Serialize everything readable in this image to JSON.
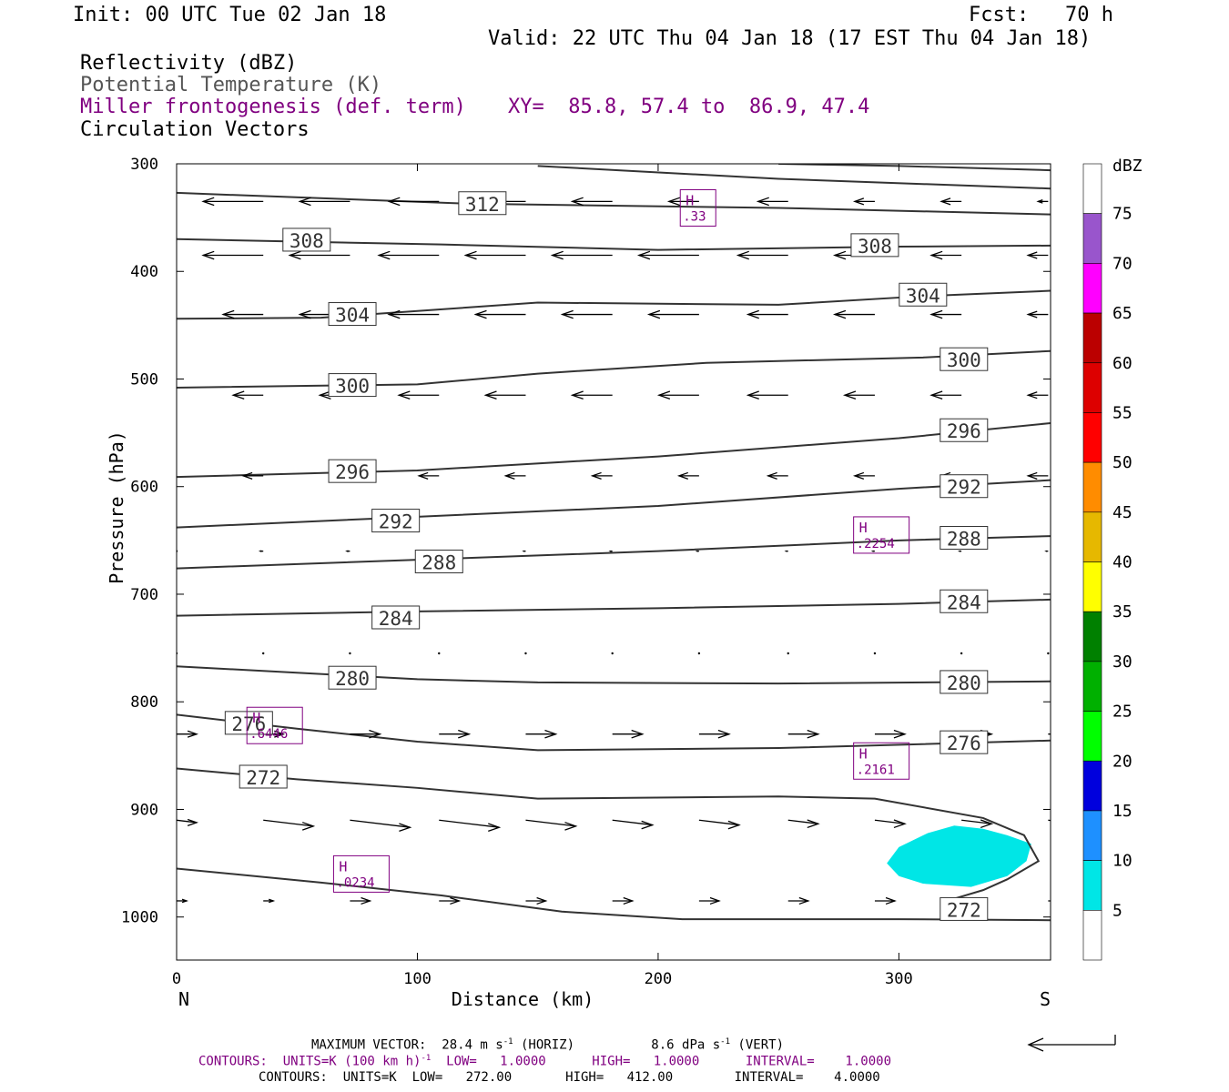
{
  "header": {
    "init": "Init: 00 UTC Tue 02 Jan 18",
    "fcst": "Fcst:   70 h",
    "valid": "Valid: 22 UTC Thu 04 Jan 18 (17 EST Thu 04 Jan 18)"
  },
  "fields": {
    "reflectivity": "Reflectivity (dBZ)",
    "theta": "Potential Temperature (K)",
    "miller": "Miller frontogenesis (def. term)",
    "xy": "XY=  85.8, 57.4 to  86.9, 47.4",
    "vectors": "Circulation Vectors"
  },
  "footer": {
    "maxvec": "MAXIMUM VECTOR:  28.4 m s",
    "maxvec_sup": "-1",
    "maxvec_horiz": " (HORIZ)",
    "maxvec_vert": "8.6 dPa s",
    "maxvec_vert_sup": "-1",
    "maxvec_vert_tail": " (VERT)",
    "contours1_a": "CONTOURS:  UNITS=K (100 km h)",
    "contours1_sup": "-1",
    "contours1_b": "  LOW=   1.0000      HIGH=   1.0000      INTERVAL=    1.0000",
    "contours2": "CONTOURS:  UNITS=K  LOW=   272.00       HIGH=   412.00        INTERVAL=    4.0000"
  },
  "colors": {
    "theta_line": "#333333",
    "miller": "#800080",
    "refl_5": "#00e6e6"
  },
  "chart_data": {
    "type": "cross-section",
    "xlabel": "Distance (km)",
    "ylabel": "Pressure (hPa)",
    "xlim": [
      0,
      363
    ],
    "ylim": [
      1040,
      300
    ],
    "x_ticks": [
      "0",
      "100",
      "200",
      "300"
    ],
    "x_tick_values": [
      0,
      100,
      200,
      300
    ],
    "y_ticks": [
      "300",
      "400",
      "500",
      "600",
      "700",
      "800",
      "900",
      "1000"
    ],
    "y_tick_values": [
      300,
      400,
      500,
      600,
      700,
      800,
      900,
      1000
    ],
    "left_end": "N",
    "right_end": "S",
    "theta_contours": [
      {
        "label": "312",
        "points": [
          [
            0,
            327
          ],
          [
            120,
            337
          ],
          [
            250,
            341
          ],
          [
            363,
            347
          ]
        ],
        "label_at": [
          [
            127,
            337
          ]
        ]
      },
      {
        "label": "308",
        "points": [
          [
            0,
            370
          ],
          [
            110,
            375
          ],
          [
            200,
            380
          ],
          [
            300,
            377
          ],
          [
            363,
            376
          ]
        ],
        "label_at": [
          [
            54,
            371
          ],
          [
            290,
            376
          ]
        ]
      },
      {
        "label": "304",
        "points": [
          [
            0,
            444
          ],
          [
            60,
            443
          ],
          [
            150,
            429
          ],
          [
            250,
            431
          ],
          [
            310,
            423
          ],
          [
            363,
            418
          ]
        ],
        "label_at": [
          [
            73,
            440
          ],
          [
            310,
            422
          ]
        ]
      },
      {
        "label": "300",
        "points": [
          [
            0,
            508
          ],
          [
            100,
            505
          ],
          [
            150,
            495
          ],
          [
            220,
            485
          ],
          [
            310,
            480
          ],
          [
            363,
            474
          ]
        ],
        "label_at": [
          [
            73,
            506
          ],
          [
            327,
            482
          ]
        ]
      },
      {
        "label": "296",
        "points": [
          [
            0,
            591
          ],
          [
            100,
            585
          ],
          [
            200,
            572
          ],
          [
            300,
            555
          ],
          [
            363,
            541
          ]
        ],
        "label_at": [
          [
            73,
            586
          ],
          [
            327,
            548
          ]
        ]
      },
      {
        "label": "292",
        "points": [
          [
            0,
            638
          ],
          [
            100,
            628
          ],
          [
            200,
            618
          ],
          [
            300,
            602
          ],
          [
            363,
            594
          ]
        ],
        "label_at": [
          [
            91,
            632
          ],
          [
            327,
            600
          ]
        ]
      },
      {
        "label": "288",
        "points": [
          [
            0,
            676
          ],
          [
            100,
            668
          ],
          [
            200,
            660
          ],
          [
            300,
            650
          ],
          [
            363,
            646
          ]
        ],
        "label_at": [
          [
            109,
            670
          ],
          [
            327,
            648
          ]
        ]
      },
      {
        "label": "284",
        "points": [
          [
            0,
            720
          ],
          [
            100,
            716
          ],
          [
            200,
            713
          ],
          [
            300,
            709
          ],
          [
            363,
            705
          ]
        ],
        "label_at": [
          [
            91,
            722
          ],
          [
            327,
            707
          ]
        ]
      },
      {
        "label": "280",
        "points": [
          [
            0,
            767
          ],
          [
            100,
            779
          ],
          [
            150,
            782
          ],
          [
            250,
            783
          ],
          [
            363,
            781
          ]
        ],
        "label_at": [
          [
            73,
            778
          ],
          [
            327,
            782
          ]
        ]
      },
      {
        "label": "276",
        "points": [
          [
            0,
            812
          ],
          [
            50,
            825
          ],
          [
            100,
            837
          ],
          [
            150,
            845
          ],
          [
            250,
            843
          ],
          [
            363,
            836
          ]
        ],
        "label_at": [
          [
            30,
            820
          ],
          [
            327,
            838
          ]
        ]
      },
      {
        "label": "272",
        "points": [
          [
            0,
            862
          ],
          [
            50,
            872
          ],
          [
            100,
            880
          ],
          [
            150,
            890
          ],
          [
            250,
            888
          ],
          [
            290,
            890
          ],
          [
            335,
            908
          ],
          [
            352,
            924
          ],
          [
            358,
            948
          ],
          [
            345,
            965
          ],
          [
            335,
            975
          ],
          [
            320,
            985
          ]
        ],
        "label_at": [
          [
            36,
            870
          ],
          [
            327,
            993
          ]
        ]
      },
      {
        "label": "",
        "points": [
          [
            0,
            955
          ],
          [
            60,
            968
          ],
          [
            110,
            980
          ],
          [
            160,
            995
          ],
          [
            210,
            1002
          ],
          [
            300,
            1002
          ],
          [
            363,
            1003
          ]
        ],
        "label_at": []
      },
      {
        "label": "",
        "points": [
          [
            250,
            300
          ],
          [
            300,
            302
          ],
          [
            363,
            306
          ]
        ],
        "label_at": []
      },
      {
        "label": "",
        "points": [
          [
            150,
            302
          ],
          [
            250,
            314
          ],
          [
            363,
            323
          ]
        ],
        "label_at": []
      }
    ],
    "miller_highs": [
      {
        "label": "H",
        "value": ".33",
        "x": 216,
        "y": 341
      },
      {
        "label": "H",
        "value": ".2254",
        "x": 288,
        "y": 645
      },
      {
        "label": "H",
        "value": ".6446",
        "x": 36,
        "y": 822
      },
      {
        "label": "H",
        "value": ".2161",
        "x": 288,
        "y": 855
      },
      {
        "label": "H",
        "value": ".0234",
        "x": 72,
        "y": 960
      }
    ],
    "reflectivity_area": {
      "level": "5",
      "points": [
        [
          295,
          950
        ],
        [
          300,
          935
        ],
        [
          312,
          922
        ],
        [
          323,
          915
        ],
        [
          335,
          918
        ],
        [
          345,
          924
        ],
        [
          355,
          932
        ],
        [
          353,
          948
        ],
        [
          345,
          962
        ],
        [
          330,
          972
        ],
        [
          310,
          969
        ],
        [
          300,
          962
        ]
      ]
    },
    "vectors": {
      "x": [
        0,
        36,
        72,
        109,
        145,
        181,
        217,
        254,
        290,
        326,
        362
      ],
      "rows": [
        {
          "p": 335,
          "u": [
            -6,
            -6,
            -5,
            -5,
            -4,
            -4,
            -3,
            -3,
            -2,
            -2,
            -1
          ]
        },
        {
          "p": 385,
          "u": [
            -5,
            -6,
            -6,
            -6,
            -6,
            -6,
            -6,
            -5,
            -4,
            -3,
            -2
          ]
        },
        {
          "p": 440,
          "u": [
            -4,
            -4,
            -5,
            -5,
            -5,
            -5,
            -5,
            -4,
            -4,
            -3,
            -2
          ]
        },
        {
          "p": 515,
          "u": [
            -3,
            -3,
            -3,
            -4,
            -4,
            -4,
            -4,
            -4,
            -3,
            -3,
            -2
          ]
        },
        {
          "p": 590,
          "u": [
            -1,
            -2,
            -2,
            -2,
            -2,
            -2,
            -2,
            -2,
            -2,
            -2,
            -2
          ]
        },
        {
          "p": 660,
          "u": [
            0,
            -0.3,
            -0.3,
            -0.2,
            -0.2,
            -0.2,
            -0.2,
            -0.2,
            -0.2,
            -0.2,
            -0.2
          ]
        },
        {
          "p": 755,
          "u": [
            0,
            0,
            0,
            0,
            0,
            0,
            0,
            0,
            0,
            0,
            0
          ]
        },
        {
          "p": 830,
          "u": [
            2,
            2,
            3,
            3,
            3,
            3,
            3,
            3,
            3,
            3,
            2
          ]
        },
        {
          "p": 910,
          "u": [
            2,
            5,
            6,
            6,
            5,
            4,
            4,
            3,
            3,
            3,
            2
          ]
        },
        {
          "p": 985,
          "u": [
            1,
            1,
            2,
            2,
            2,
            2,
            2,
            2,
            2,
            2,
            2
          ]
        }
      ]
    },
    "colorbar": {
      "title": "dBZ",
      "labels": [
        "75",
        "70",
        "65",
        "60",
        "55",
        "50",
        "45",
        "40",
        "35",
        "30",
        "25",
        "20",
        "15",
        "10",
        "5"
      ],
      "colors": [
        "#ffffff",
        "#9955cc",
        "#ff00ff",
        "#bb0000",
        "#dd0000",
        "#ff0000",
        "#ff8c00",
        "#e6b800",
        "#ffff00",
        "#008000",
        "#00b000",
        "#00ff00",
        "#0000dd",
        "#1e90ff",
        "#00e6e6",
        "#ffffff"
      ]
    }
  }
}
